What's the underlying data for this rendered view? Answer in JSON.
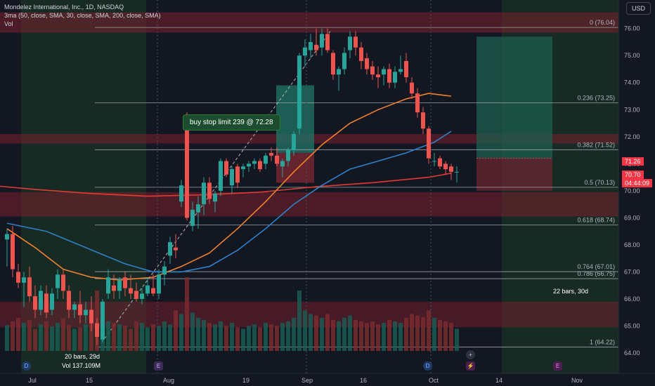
{
  "header": {
    "title": "Mondelez International, Inc., 1D, NASDAQ",
    "indicator": "3ma (50, close, SMA, 30, close, SMA, 200, close, SMA)",
    "volume_label": "Vol",
    "currency_button": "USD"
  },
  "order_label": "buy stop limit 239 @ 72.28",
  "price_tags": {
    "upper_value": "71.26",
    "lower_value": "70.70",
    "countdown": "04:44:09",
    "colors": {
      "upper": "#f23645",
      "lower": "#f23645"
    }
  },
  "ranges": {
    "left": {
      "bars": "20 bars, 29d",
      "volume": "Vol 137.109M"
    },
    "right": {
      "bars": "22 bars, 30d"
    }
  },
  "markers": [
    {
      "icon": "dividend-icon",
      "label": "D"
    },
    {
      "icon": "earnings-icon",
      "label": "E"
    },
    {
      "icon": "dividend-icon",
      "label": "D"
    },
    {
      "icon": "add-icon",
      "label": "+"
    },
    {
      "icon": "lightning-icon",
      "label": "⚡"
    },
    {
      "icon": "earnings-icon",
      "label": "E"
    }
  ],
  "chart_data": {
    "type": "candlestick",
    "y_ticks": [
      "76.00",
      "75.00",
      "74.00",
      "73.00",
      "72.00",
      "71.00",
      "70.00",
      "69.00",
      "68.00",
      "67.00",
      "66.00",
      "65.00",
      "64.00"
    ],
    "ylim": [
      63.3,
      76.9
    ],
    "x_ticks": [
      "Jul",
      "15",
      "Aug",
      "19",
      "Sep",
      "16",
      "Oct",
      "14",
      "Nov"
    ],
    "fib_levels": [
      {
        "label": "0 (76.04)",
        "value": 76.04
      },
      {
        "label": "0.236 (73.25)",
        "value": 73.25
      },
      {
        "label": "0.382 (71.52)",
        "value": 71.52
      },
      {
        "label": "0.5 (70.13)",
        "value": 70.13
      },
      {
        "label": "0.618 (68.74)",
        "value": 68.74
      },
      {
        "label": "0.764 (67.01)",
        "value": 67.01
      },
      {
        "label": "0.786 (66.75)",
        "value": 66.75
      },
      {
        "label": "1 (64.22)",
        "value": 64.22
      }
    ],
    "candles": [
      {
        "o": 68.2,
        "h": 68.6,
        "l": 67.2,
        "c": 68.4
      },
      {
        "o": 68.4,
        "h": 68.7,
        "l": 66.8,
        "c": 67.1
      },
      {
        "o": 67.0,
        "h": 67.3,
        "l": 66.4,
        "c": 66.6
      },
      {
        "o": 66.6,
        "h": 67.0,
        "l": 65.7,
        "c": 66.8
      },
      {
        "o": 66.8,
        "h": 67.2,
        "l": 65.9,
        "c": 66.1
      },
      {
        "o": 66.1,
        "h": 66.5,
        "l": 65.3,
        "c": 65.6
      },
      {
        "o": 65.6,
        "h": 66.5,
        "l": 65.4,
        "c": 66.3
      },
      {
        "o": 66.2,
        "h": 66.5,
        "l": 65.3,
        "c": 65.5
      },
      {
        "o": 65.6,
        "h": 66.4,
        "l": 65.4,
        "c": 66.2
      },
      {
        "o": 66.4,
        "h": 67.1,
        "l": 66.0,
        "c": 66.9
      },
      {
        "o": 66.9,
        "h": 67.1,
        "l": 66.0,
        "c": 66.3
      },
      {
        "o": 66.3,
        "h": 66.5,
        "l": 65.3,
        "c": 65.6
      },
      {
        "o": 65.6,
        "h": 65.9,
        "l": 65.3,
        "c": 65.8
      },
      {
        "o": 65.8,
        "h": 66.3,
        "l": 65.1,
        "c": 65.4
      },
      {
        "o": 65.4,
        "h": 65.9,
        "l": 65.1,
        "c": 65.6
      },
      {
        "o": 65.6,
        "h": 66.1,
        "l": 64.8,
        "c": 65.1
      },
      {
        "o": 65.1,
        "h": 65.3,
        "l": 64.3,
        "c": 64.6
      },
      {
        "o": 64.5,
        "h": 66.0,
        "l": 64.4,
        "c": 65.9
      },
      {
        "o": 66.2,
        "h": 67.1,
        "l": 66.0,
        "c": 66.8
      },
      {
        "o": 66.5,
        "h": 66.9,
        "l": 66.0,
        "c": 66.3
      },
      {
        "o": 66.3,
        "h": 66.8,
        "l": 66.0,
        "c": 66.7
      },
      {
        "o": 66.8,
        "h": 67.0,
        "l": 66.1,
        "c": 66.4
      },
      {
        "o": 66.4,
        "h": 66.9,
        "l": 66.0,
        "c": 66.2
      },
      {
        "o": 66.3,
        "h": 66.6,
        "l": 65.9,
        "c": 66.0
      },
      {
        "o": 66.0,
        "h": 66.4,
        "l": 65.8,
        "c": 66.2
      },
      {
        "o": 66.2,
        "h": 66.8,
        "l": 66.1,
        "c": 66.5
      },
      {
        "o": 66.4,
        "h": 66.9,
        "l": 66.1,
        "c": 66.2
      },
      {
        "o": 66.2,
        "h": 67.1,
        "l": 66.0,
        "c": 66.9
      },
      {
        "o": 66.9,
        "h": 67.4,
        "l": 66.5,
        "c": 67.2
      },
      {
        "o": 67.6,
        "h": 68.3,
        "l": 67.3,
        "c": 68.1
      },
      {
        "o": 67.9,
        "h": 68.4,
        "l": 67.5,
        "c": 67.8
      },
      {
        "o": 69.6,
        "h": 70.4,
        "l": 69.4,
        "c": 70.2
      },
      {
        "o": 72.6,
        "h": 72.9,
        "l": 68.9,
        "c": 69.0
      },
      {
        "o": 68.7,
        "h": 69.6,
        "l": 68.5,
        "c": 69.3
      },
      {
        "o": 69.2,
        "h": 69.8,
        "l": 68.6,
        "c": 69.5
      },
      {
        "o": 69.5,
        "h": 70.5,
        "l": 69.1,
        "c": 70.3
      },
      {
        "o": 70.3,
        "h": 70.5,
        "l": 69.5,
        "c": 69.7
      },
      {
        "o": 69.6,
        "h": 70.0,
        "l": 69.2,
        "c": 69.9
      },
      {
        "o": 70.0,
        "h": 71.2,
        "l": 69.8,
        "c": 71.1
      },
      {
        "o": 71.1,
        "h": 71.2,
        "l": 70.5,
        "c": 70.6
      },
      {
        "o": 70.2,
        "h": 70.9,
        "l": 69.9,
        "c": 70.8
      },
      {
        "o": 70.9,
        "h": 71.0,
        "l": 70.1,
        "c": 70.3
      },
      {
        "o": 70.8,
        "h": 71.0,
        "l": 70.5,
        "c": 70.9
      },
      {
        "o": 70.9,
        "h": 71.1,
        "l": 70.7,
        "c": 71.0
      },
      {
        "o": 71.0,
        "h": 71.2,
        "l": 70.8,
        "c": 71.1
      },
      {
        "o": 71.1,
        "h": 71.2,
        "l": 70.7,
        "c": 70.8
      },
      {
        "o": 71.0,
        "h": 71.4,
        "l": 70.8,
        "c": 71.3
      },
      {
        "o": 71.4,
        "h": 71.6,
        "l": 71.1,
        "c": 71.3
      },
      {
        "o": 71.3,
        "h": 71.6,
        "l": 70.9,
        "c": 71.0
      },
      {
        "o": 70.9,
        "h": 71.2,
        "l": 70.5,
        "c": 71.1
      },
      {
        "o": 71.1,
        "h": 71.6,
        "l": 70.9,
        "c": 71.5
      },
      {
        "o": 71.5,
        "h": 72.2,
        "l": 71.3,
        "c": 72.1
      },
      {
        "o": 72.3,
        "h": 75.1,
        "l": 72.1,
        "c": 75.0
      },
      {
        "o": 75.0,
        "h": 75.6,
        "l": 74.6,
        "c": 75.3
      },
      {
        "o": 75.2,
        "h": 75.8,
        "l": 74.9,
        "c": 75.5
      },
      {
        "o": 75.4,
        "h": 76.0,
        "l": 75.0,
        "c": 75.2
      },
      {
        "o": 75.3,
        "h": 76.0,
        "l": 75.0,
        "c": 75.8
      },
      {
        "o": 75.8,
        "h": 76.0,
        "l": 75.1,
        "c": 75.2
      },
      {
        "o": 75.1,
        "h": 75.2,
        "l": 74.1,
        "c": 74.3
      },
      {
        "o": 74.3,
        "h": 74.6,
        "l": 73.7,
        "c": 74.5
      },
      {
        "o": 74.5,
        "h": 75.3,
        "l": 74.3,
        "c": 75.1
      },
      {
        "o": 75.2,
        "h": 75.9,
        "l": 74.9,
        "c": 75.7
      },
      {
        "o": 75.7,
        "h": 75.9,
        "l": 75.0,
        "c": 75.3
      },
      {
        "o": 75.3,
        "h": 75.5,
        "l": 74.5,
        "c": 74.8
      },
      {
        "o": 74.9,
        "h": 75.1,
        "l": 74.3,
        "c": 74.5
      },
      {
        "o": 74.6,
        "h": 74.8,
        "l": 74.1,
        "c": 74.3
      },
      {
        "o": 74.3,
        "h": 74.6,
        "l": 73.8,
        "c": 74.2
      },
      {
        "o": 74.3,
        "h": 74.6,
        "l": 73.9,
        "c": 74.5
      },
      {
        "o": 74.5,
        "h": 74.7,
        "l": 73.8,
        "c": 74.0
      },
      {
        "o": 74.0,
        "h": 74.6,
        "l": 73.8,
        "c": 74.4
      },
      {
        "o": 74.4,
        "h": 75.0,
        "l": 74.3,
        "c": 74.5
      },
      {
        "o": 74.8,
        "h": 75.1,
        "l": 74.0,
        "c": 74.2
      },
      {
        "o": 74.0,
        "h": 74.2,
        "l": 73.4,
        "c": 73.6
      },
      {
        "o": 73.6,
        "h": 73.8,
        "l": 72.7,
        "c": 72.9
      },
      {
        "o": 72.9,
        "h": 73.1,
        "l": 72.1,
        "c": 72.3
      },
      {
        "o": 72.3,
        "h": 72.4,
        "l": 71.0,
        "c": 71.2
      },
      {
        "o": 71.1,
        "h": 71.4,
        "l": 70.9,
        "c": 71.1
      },
      {
        "o": 71.2,
        "h": 71.3,
        "l": 70.8,
        "c": 70.9
      },
      {
        "o": 71.0,
        "h": 71.1,
        "l": 70.6,
        "c": 70.8
      },
      {
        "o": 70.9,
        "h": 71.0,
        "l": 70.4,
        "c": 70.7
      },
      {
        "o": 70.7,
        "h": 70.9,
        "l": 70.3,
        "c": 70.7
      }
    ],
    "sma_50": [
      [
        0,
        68.8
      ],
      [
        7,
        68.5
      ],
      [
        14,
        67.9
      ],
      [
        21,
        67.3
      ],
      [
        26,
        67.0
      ],
      [
        31,
        67.0
      ],
      [
        36,
        67.2
      ],
      [
        41,
        67.8
      ],
      [
        46,
        68.6
      ],
      [
        51,
        69.5
      ],
      [
        56,
        70.2
      ],
      [
        61,
        70.8
      ],
      [
        66,
        71.1
      ],
      [
        71,
        71.4
      ],
      [
        76,
        71.8
      ],
      [
        79,
        72.2
      ]
    ],
    "sma_30": [
      [
        0,
        68.6
      ],
      [
        5,
        67.9
      ],
      [
        10,
        67.1
      ],
      [
        15,
        66.8
      ],
      [
        20,
        66.7
      ],
      [
        26,
        66.8
      ],
      [
        31,
        67.2
      ],
      [
        36,
        67.7
      ],
      [
        41,
        68.6
      ],
      [
        46,
        69.6
      ],
      [
        51,
        70.7
      ],
      [
        56,
        71.7
      ],
      [
        61,
        72.5
      ],
      [
        66,
        73.0
      ],
      [
        71,
        73.4
      ],
      [
        75,
        73.6
      ],
      [
        79,
        73.5
      ]
    ],
    "sma_200": [
      [
        -3,
        70.2
      ],
      [
        5,
        70.05
      ],
      [
        15,
        69.9
      ],
      [
        25,
        69.8
      ],
      [
        35,
        69.85
      ],
      [
        45,
        69.95
      ],
      [
        55,
        70.15
      ],
      [
        65,
        70.3
      ],
      [
        75,
        70.5
      ],
      [
        79,
        70.65
      ]
    ],
    "volume": [
      0.35,
      0.4,
      0.45,
      0.38,
      0.42,
      0.3,
      0.36,
      0.4,
      0.33,
      0.38,
      0.44,
      0.35,
      0.3,
      0.32,
      0.36,
      0.42,
      0.82,
      0.45,
      0.4,
      0.38,
      0.36,
      0.34,
      0.3,
      0.4,
      0.38,
      0.32,
      0.36,
      0.34,
      0.4,
      0.36,
      0.55,
      0.5,
      1.0,
      0.52,
      0.45,
      0.42,
      0.38,
      0.36,
      0.4,
      0.34,
      0.38,
      0.32,
      0.3,
      0.34,
      0.36,
      0.32,
      0.38,
      0.36,
      0.34,
      0.38,
      0.4,
      0.45,
      0.82,
      0.55,
      0.5,
      0.48,
      0.45,
      0.5,
      0.42,
      0.4,
      0.45,
      0.48,
      0.42,
      0.4,
      0.38,
      0.4,
      0.36,
      0.38,
      0.42,
      0.4,
      0.38,
      0.45,
      0.5,
      0.48,
      0.46,
      0.55,
      0.45,
      0.42,
      0.4,
      0.38,
      0.3
    ]
  }
}
